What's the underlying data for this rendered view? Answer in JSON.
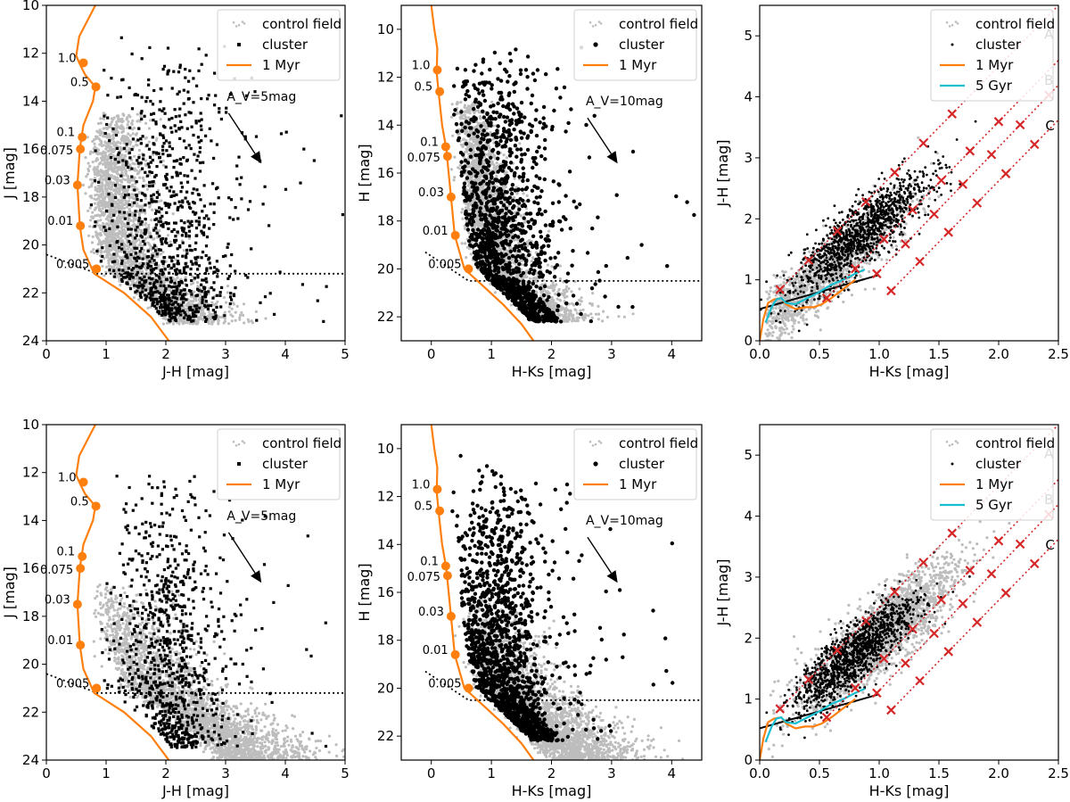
{
  "colors": {
    "control": "#bdbdbd",
    "cluster": "#000000",
    "iso1": "#ff7f0e",
    "iso5": "#17becf",
    "red": "#d62728",
    "axis": "#000000"
  },
  "chart_data": [
    {
      "id": "cmd-jh-top",
      "type": "scatter",
      "kind": "jh",
      "xlabel": "J-H [mag]",
      "ylabel": "J [mag]",
      "xlim": [
        0,
        5
      ],
      "ylim": [
        24,
        10
      ],
      "xticks": [
        "0",
        "1",
        "2",
        "3",
        "4",
        "5"
      ],
      "yticks": [
        "10",
        "12",
        "14",
        "16",
        "18",
        "20",
        "22",
        "24"
      ],
      "legend": [
        "control field",
        "cluster",
        "1 Myr"
      ],
      "reddening_label": "A_V=5mag",
      "reddening_vector": {
        "start": [
          3.05,
          14.5
        ],
        "end": [
          3.6,
          16.6
        ]
      },
      "cluster": {
        "n": 1000,
        "mean_x": 2.0,
        "sd_x": 0.55,
        "y_min": 11.2,
        "y_max": 23.2,
        "y_shape": "sq",
        "marker": "square"
      },
      "control": {
        "n": 2400,
        "shape": "top"
      },
      "isochrone_1myr": {
        "x": [
          0.82,
          0.55,
          0.5,
          0.55,
          0.65,
          0.82,
          0.78,
          0.62,
          0.56,
          0.52,
          0.56,
          0.62,
          0.8,
          1.3,
          1.75,
          2.05
        ],
        "y": [
          10.0,
          11.3,
          12.1,
          12.4,
          12.9,
          13.4,
          14.0,
          15.0,
          16.0,
          17.5,
          19.2,
          20.2,
          21.2,
          22.0,
          23.0,
          24.0
        ]
      },
      "mass_points": [
        {
          "label": "1.0",
          "x": 0.62,
          "y": 12.4
        },
        {
          "label": "0.5",
          "x": 0.83,
          "y": 13.4
        },
        {
          "label": "0.1",
          "x": 0.6,
          "y": 15.5
        },
        {
          "label": "0.075",
          "x": 0.57,
          "y": 16.0
        },
        {
          "label": "0.03",
          "x": 0.52,
          "y": 17.5
        },
        {
          "label": "0.01",
          "x": 0.57,
          "y": 19.2
        },
        {
          "label": "0.005",
          "x": 0.84,
          "y": 21.0
        }
      ],
      "completeness_line": {
        "x": [
          0.0,
          0.85,
          5.0
        ],
        "y": [
          20.4,
          21.2,
          21.2
        ]
      }
    },
    {
      "id": "cmd-hk-top",
      "type": "scatter",
      "kind": "hk",
      "xlabel": "H-Ks [mag]",
      "ylabel": "H [mag]",
      "xlim": [
        -0.5,
        4.5
      ],
      "ylim": [
        23,
        9
      ],
      "xticks": [
        "0",
        "1",
        "2",
        "3",
        "4"
      ],
      "yticks": [
        "10",
        "12",
        "14",
        "16",
        "18",
        "20",
        "22"
      ],
      "legend": [
        "control field",
        "cluster",
        "1 Myr"
      ],
      "reddening_label": "A_V=10mag",
      "reddening_vector": {
        "start": [
          2.6,
          13.7
        ],
        "end": [
          3.1,
          15.6
        ]
      },
      "cluster": {
        "n": 1400,
        "mean_x": 1.05,
        "sd_x": 0.45,
        "y_min": 10.2,
        "y_max": 22.2,
        "y_shape": "sq",
        "marker": "dot"
      },
      "control": {
        "n": 2400,
        "shape": "top"
      },
      "isochrone_1myr": {
        "x": [
          0.0,
          0.05,
          0.1,
          0.09,
          0.12,
          0.18,
          0.25,
          0.32,
          0.39,
          0.55,
          0.9,
          1.2,
          1.5,
          1.7
        ],
        "y": [
          9.0,
          10.0,
          10.8,
          11.8,
          12.6,
          14.0,
          15.0,
          16.8,
          18.6,
          20.0,
          20.8,
          21.5,
          22.3,
          23.0
        ]
      },
      "mass_points": [
        {
          "label": "1.0",
          "x": 0.1,
          "y": 11.7
        },
        {
          "label": "0.5",
          "x": 0.14,
          "y": 12.6
        },
        {
          "label": "0.1",
          "x": 0.24,
          "y": 14.9
        },
        {
          "label": "0.075",
          "x": 0.27,
          "y": 15.3
        },
        {
          "label": "0.03",
          "x": 0.33,
          "y": 17.0
        },
        {
          "label": "0.01",
          "x": 0.4,
          "y": 18.6
        },
        {
          "label": "0.005",
          "x": 0.62,
          "y": 20.0
        }
      ],
      "completeness_line": {
        "x": [
          -0.1,
          0.62,
          4.5
        ],
        "y": [
          19.3,
          20.5,
          20.5
        ]
      }
    },
    {
      "id": "ccd-top",
      "type": "scatter",
      "kind": "ccd",
      "xlabel": "H-Ks [mag]",
      "ylabel": "J-H [mag]",
      "xlim": [
        0,
        2.5
      ],
      "ylim": [
        0,
        5.5
      ],
      "xticks": [
        "0.0",
        "0.5",
        "1.0",
        "1.5",
        "2.0",
        "2.5"
      ],
      "yticks": [
        "0",
        "1",
        "2",
        "3",
        "4",
        "5"
      ],
      "legend": [
        "control field",
        "cluster",
        "1 Myr",
        "5 Gyr"
      ],
      "sequence_labels": [
        "A",
        "B",
        "C"
      ],
      "cluster": {
        "n": 1200,
        "mean_x": 0.85,
        "sd_x": 0.28,
        "slope": 1.5,
        "intercept": 0.48,
        "scatter": 0.28,
        "marker": "dot"
      },
      "control": {
        "n": 1200,
        "mean_x": 0.55,
        "sd_x": 0.33,
        "slope": 1.55,
        "intercept": 0.25,
        "scatter": 0.25
      },
      "isochrone_1myr": {
        "x": [
          0.0,
          0.03,
          0.07,
          0.12,
          0.18,
          0.22,
          0.3,
          0.38,
          0.45,
          0.52,
          0.6,
          0.7,
          0.8
        ],
        "y": [
          0.0,
          0.35,
          0.62,
          0.68,
          0.7,
          0.6,
          0.52,
          0.55,
          0.55,
          0.6,
          0.7,
          0.85,
          1.0
        ]
      },
      "isochrone_5gyr": {
        "x": [
          0.05,
          0.1,
          0.14,
          0.18,
          0.22,
          0.3,
          0.4,
          0.5,
          0.6,
          0.7,
          0.8,
          0.88
        ],
        "y": [
          0.3,
          0.55,
          0.68,
          0.7,
          0.62,
          0.6,
          0.7,
          0.8,
          0.92,
          1.0,
          1.1,
          1.17
        ]
      },
      "ctts_line": {
        "x": [
          0.0,
          1.0
        ],
        "y": [
          0.52,
          1.08
        ]
      },
      "reddening_lines": [
        {
          "label": "A",
          "x": [
            0.17,
            2.7
          ],
          "y": [
            0.84,
            5.9
          ]
        },
        {
          "label": "B",
          "x": [
            0.56,
            2.7
          ],
          "y": [
            0.7,
            5.0
          ]
        },
        {
          "label": "C",
          "x": [
            0.98,
            2.7
          ],
          "y": [
            1.1,
            4.6
          ]
        },
        {
          "label": "",
          "x": [
            1.1,
            2.7
          ],
          "y": [
            0.82,
            4.02
          ]
        }
      ],
      "red_markers_per_line": 7,
      "red_marker_spacing": 0.24
    },
    {
      "id": "cmd-jh-bottom",
      "type": "scatter",
      "kind": "jh",
      "xlabel": "J-H [mag]",
      "ylabel": "J [mag]",
      "xlim": [
        0,
        5
      ],
      "ylim": [
        24,
        10
      ],
      "xticks": [
        "0",
        "1",
        "2",
        "3",
        "4",
        "5"
      ],
      "yticks": [
        "10",
        "12",
        "14",
        "16",
        "18",
        "20",
        "22",
        "24"
      ],
      "legend": [
        "control field",
        "cluster",
        "1 Myr"
      ],
      "reddening_label": "A_V=5mag",
      "reddening_vector": {
        "start": [
          3.05,
          14.5
        ],
        "end": [
          3.6,
          16.6
        ]
      },
      "cluster": {
        "n": 900,
        "mean_x": 2.05,
        "sd_x": 0.45,
        "y_min": 11.5,
        "y_max": 23.5,
        "y_shape": "sq",
        "marker": "square"
      },
      "control": {
        "n": 2600,
        "shape": "bottom"
      },
      "isochrone_1myr": {
        "x": [
          0.82,
          0.55,
          0.5,
          0.55,
          0.65,
          0.82,
          0.78,
          0.62,
          0.56,
          0.52,
          0.56,
          0.62,
          0.8,
          1.3,
          1.75,
          2.05
        ],
        "y": [
          10.0,
          11.3,
          12.1,
          12.4,
          12.9,
          13.4,
          14.0,
          15.0,
          16.0,
          17.5,
          19.2,
          20.2,
          21.2,
          22.0,
          23.0,
          24.0
        ]
      },
      "mass_points": [
        {
          "label": "1.0",
          "x": 0.62,
          "y": 12.4
        },
        {
          "label": "0.5",
          "x": 0.83,
          "y": 13.4
        },
        {
          "label": "0.1",
          "x": 0.6,
          "y": 15.5
        },
        {
          "label": "0.075",
          "x": 0.57,
          "y": 16.0
        },
        {
          "label": "0.03",
          "x": 0.52,
          "y": 17.5
        },
        {
          "label": "0.01",
          "x": 0.57,
          "y": 19.2
        },
        {
          "label": "0.005",
          "x": 0.84,
          "y": 21.0
        }
      ],
      "completeness_line": {
        "x": [
          0.0,
          0.85,
          5.0
        ],
        "y": [
          20.4,
          21.2,
          21.2
        ]
      }
    },
    {
      "id": "cmd-hk-bottom",
      "type": "scatter",
      "kind": "hk",
      "xlabel": "H-Ks [mag]",
      "ylabel": "H [mag]",
      "xlim": [
        -0.5,
        4.5
      ],
      "ylim": [
        23,
        9
      ],
      "xticks": [
        "0",
        "1",
        "2",
        "3",
        "4"
      ],
      "yticks": [
        "10",
        "12",
        "14",
        "16",
        "18",
        "20",
        "22"
      ],
      "legend": [
        "control field",
        "cluster",
        "1 Myr"
      ],
      "reddening_label": "A_V=10mag",
      "reddening_vector": {
        "start": [
          2.6,
          13.7
        ],
        "end": [
          3.1,
          15.6
        ]
      },
      "cluster": {
        "n": 1500,
        "mean_x": 1.05,
        "sd_x": 0.42,
        "y_min": 10.2,
        "y_max": 22.2,
        "y_shape": "sq",
        "marker": "dot"
      },
      "control": {
        "n": 2600,
        "shape": "bottom"
      },
      "isochrone_1myr": {
        "x": [
          0.0,
          0.05,
          0.1,
          0.09,
          0.12,
          0.18,
          0.25,
          0.32,
          0.39,
          0.55,
          0.9,
          1.2,
          1.5,
          1.7
        ],
        "y": [
          9.0,
          10.0,
          10.8,
          11.8,
          12.6,
          14.0,
          15.0,
          16.8,
          18.6,
          20.0,
          20.8,
          21.5,
          22.3,
          23.0
        ]
      },
      "mass_points": [
        {
          "label": "1.0",
          "x": 0.1,
          "y": 11.7
        },
        {
          "label": "0.5",
          "x": 0.14,
          "y": 12.6
        },
        {
          "label": "0.1",
          "x": 0.24,
          "y": 14.9
        },
        {
          "label": "0.075",
          "x": 0.27,
          "y": 15.3
        },
        {
          "label": "0.03",
          "x": 0.33,
          "y": 17.0
        },
        {
          "label": "0.01",
          "x": 0.4,
          "y": 18.6
        },
        {
          "label": "0.005",
          "x": 0.62,
          "y": 20.0
        }
      ],
      "completeness_line": {
        "x": [
          -0.1,
          0.62,
          4.5
        ],
        "y": [
          19.3,
          20.5,
          20.5
        ]
      }
    },
    {
      "id": "ccd-bottom",
      "type": "scatter",
      "kind": "ccd",
      "xlabel": "H-Ks [mag]",
      "ylabel": "J-H [mag]",
      "xlim": [
        0,
        2.5
      ],
      "ylim": [
        0,
        5.5
      ],
      "xticks": [
        "0.0",
        "0.5",
        "1.0",
        "1.5",
        "2.0",
        "2.5"
      ],
      "yticks": [
        "0",
        "1",
        "2",
        "3",
        "4",
        "5"
      ],
      "legend": [
        "control field",
        "cluster",
        "1 Myr",
        "5 Gyr"
      ],
      "sequence_labels": [
        "A",
        "B",
        "C"
      ],
      "cluster": {
        "n": 1200,
        "mean_x": 0.8,
        "sd_x": 0.25,
        "slope": 1.5,
        "intercept": 0.55,
        "scatter": 0.25,
        "marker": "dot"
      },
      "control": {
        "n": 2200,
        "mean_x": 1.0,
        "sd_x": 0.32,
        "slope": 1.55,
        "intercept": 0.5,
        "scatter": 0.3
      },
      "isochrone_1myr": {
        "x": [
          0.0,
          0.03,
          0.07,
          0.12,
          0.18,
          0.22,
          0.3,
          0.38,
          0.45,
          0.52,
          0.6,
          0.7,
          0.8
        ],
        "y": [
          0.0,
          0.35,
          0.62,
          0.68,
          0.7,
          0.6,
          0.52,
          0.55,
          0.55,
          0.6,
          0.7,
          0.85,
          1.0
        ]
      },
      "isochrone_5gyr": {
        "x": [
          0.05,
          0.1,
          0.14,
          0.18,
          0.22,
          0.3,
          0.4,
          0.5,
          0.6,
          0.7,
          0.8,
          0.88
        ],
        "y": [
          0.3,
          0.55,
          0.68,
          0.7,
          0.62,
          0.6,
          0.7,
          0.8,
          0.92,
          1.0,
          1.1,
          1.17
        ]
      },
      "ctts_line": {
        "x": [
          0.0,
          1.0
        ],
        "y": [
          0.52,
          1.08
        ]
      },
      "reddening_lines": [
        {
          "label": "A",
          "x": [
            0.17,
            2.7
          ],
          "y": [
            0.84,
            5.9
          ]
        },
        {
          "label": "B",
          "x": [
            0.56,
            2.7
          ],
          "y": [
            0.7,
            5.0
          ]
        },
        {
          "label": "C",
          "x": [
            0.98,
            2.7
          ],
          "y": [
            1.1,
            4.6
          ]
        },
        {
          "label": "",
          "x": [
            1.1,
            2.7
          ],
          "y": [
            0.82,
            4.02
          ]
        }
      ],
      "red_markers_per_line": 7,
      "red_marker_spacing": 0.24
    }
  ]
}
